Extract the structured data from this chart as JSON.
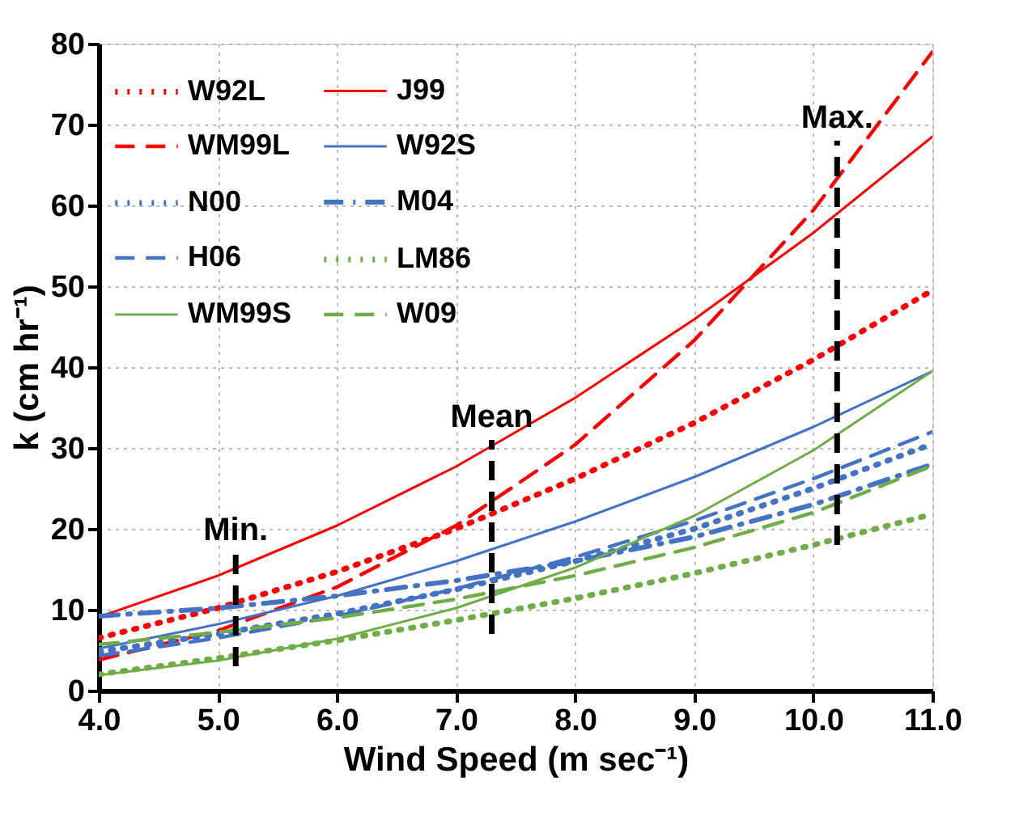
{
  "chart_data": {
    "type": "line",
    "xlabel": "Wind Speed (m sec⁻¹)",
    "ylabel": "k (cm hr⁻¹)",
    "x": [
      4,
      5,
      6,
      7,
      8,
      9,
      10,
      11
    ],
    "xlim": [
      4,
      11
    ],
    "xticks": [
      {
        "value": 4,
        "label": "4.0"
      },
      {
        "value": 5,
        "label": "5.0"
      },
      {
        "value": 6,
        "label": "6.0"
      },
      {
        "value": 7,
        "label": "7.0"
      },
      {
        "value": 8,
        "label": "8.0"
      },
      {
        "value": 9,
        "label": "9.0"
      },
      {
        "value": 10,
        "label": "10.0"
      },
      {
        "value": 11,
        "label": "11.0"
      }
    ],
    "ylim": [
      0,
      80
    ],
    "yticks": [
      0,
      10,
      20,
      30,
      40,
      50,
      60,
      70,
      80
    ],
    "grid": true,
    "legend": "top left",
    "series": [
      {
        "name": "W92L",
        "color": "#ff0000",
        "line_style": "dotted",
        "values": [
          6.5,
          10.2,
          14.7,
          20.0,
          26.2,
          33.1,
          40.9,
          49.5
        ]
      },
      {
        "name": "J99",
        "color": "#ff0000",
        "line_style": "solid",
        "values": [
          9.1,
          14.2,
          20.4,
          27.7,
          36.2,
          45.9,
          56.6,
          68.5
        ]
      },
      {
        "name": "WM99L",
        "color": "#ff0000",
        "line_style": "dashed",
        "values": [
          3.8,
          7.4,
          12.8,
          20.4,
          30.4,
          43.3,
          59.4,
          79.0
        ]
      },
      {
        "name": "W92S",
        "color": "#4472c4",
        "line_style": "solid",
        "values": [
          5.2,
          8.2,
          11.7,
          16.0,
          20.9,
          26.4,
          32.6,
          39.5
        ]
      },
      {
        "name": "N00",
        "color": "#4472c4",
        "line_style": "dotted",
        "values": [
          4.8,
          7.0,
          9.5,
          12.5,
          16.0,
          20.0,
          25.0,
          30.5
        ]
      },
      {
        "name": "M04",
        "color": "#4472c4",
        "line_style": "dashdot",
        "values": [
          9.2,
          10.2,
          11.7,
          13.6,
          16.0,
          19.0,
          23.0,
          28.0
        ]
      },
      {
        "name": "H06",
        "color": "#4472c4",
        "line_style": "dashed",
        "values": [
          4.3,
          6.5,
          9.2,
          12.6,
          16.5,
          21.0,
          26.2,
          32.0
        ]
      },
      {
        "name": "LM86",
        "color": "#70ad47",
        "line_style": "dotted",
        "values": [
          2.0,
          4.0,
          6.2,
          8.7,
          11.4,
          14.5,
          18.0,
          21.8
        ]
      },
      {
        "name": "WM99S",
        "color": "#70ad47",
        "line_style": "solid",
        "values": [
          1.9,
          3.7,
          6.4,
          10.2,
          15.2,
          21.6,
          29.7,
          39.5
        ]
      },
      {
        "name": "W09",
        "color": "#70ad47",
        "line_style": "dashed",
        "values": [
          5.7,
          7.2,
          9.0,
          11.3,
          14.2,
          17.7,
          22.0,
          27.8
        ]
      },
      {
        "color": "#000000",
        "line_style": "dashed",
        "x": [
          5.15,
          5.15
        ],
        "values": [
          3,
          17
        ]
      },
      {
        "color": "#000000",
        "line_style": "dashed",
        "x": [
          7.3,
          7.3
        ],
        "values": [
          7,
          31
        ]
      },
      {
        "color": "#000000",
        "line_style": "dashed",
        "x": [
          10.2,
          10.2
        ],
        "values": [
          18,
          68
        ]
      }
    ],
    "annotations": [
      "Min.",
      "Mean",
      "Max."
    ]
  }
}
